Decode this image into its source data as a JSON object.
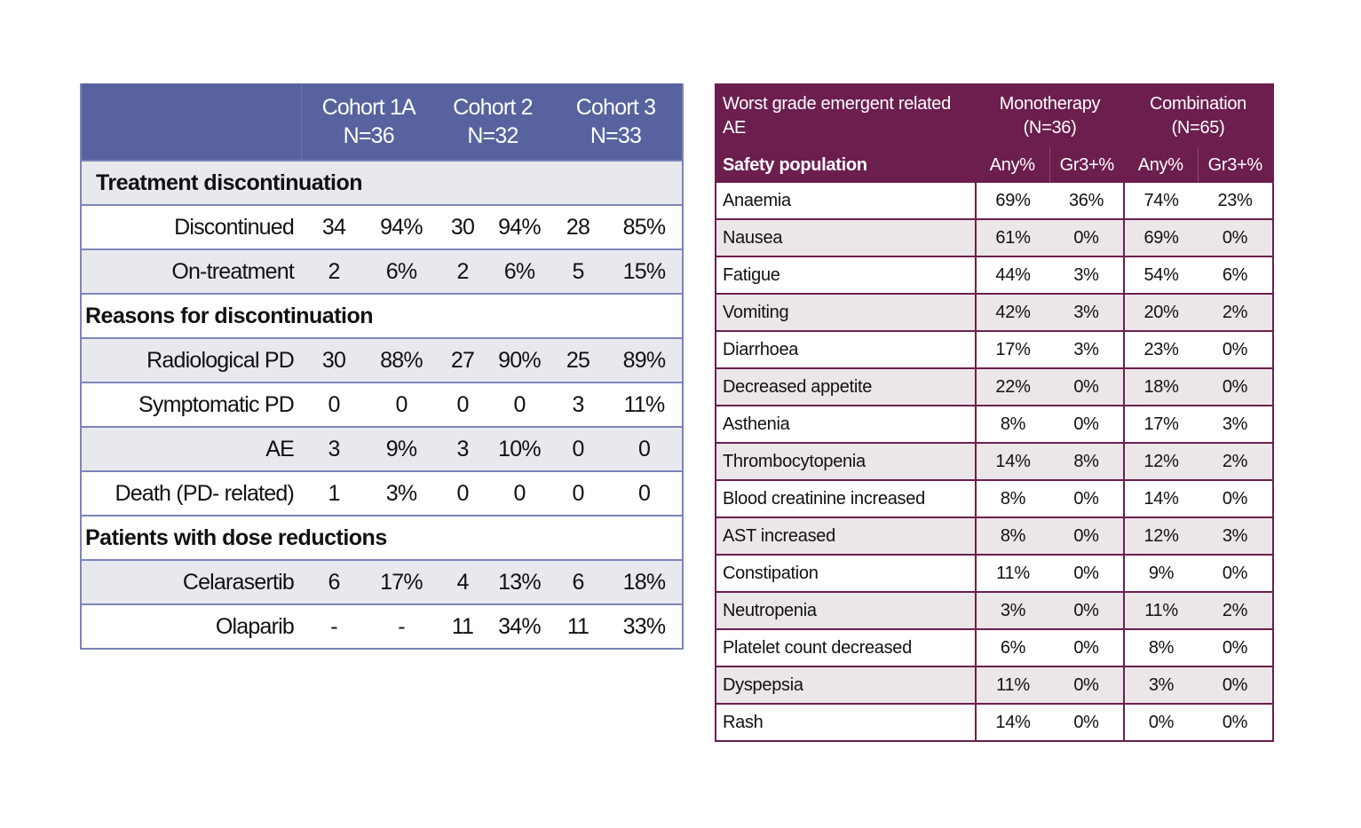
{
  "left_table": {
    "headers": [
      {
        "name": "Cohort 1A",
        "n": "N=36"
      },
      {
        "name": "Cohort 2",
        "n": "N=32"
      },
      {
        "name": "Cohort 3",
        "n": "N=33"
      }
    ],
    "sections": [
      {
        "title": "Treatment discontinuation",
        "rows": [
          {
            "label": "Discontinued",
            "values": [
              "34",
              "94%",
              "30",
              "94%",
              "28",
              "85%"
            ]
          },
          {
            "label": "On-treatment",
            "values": [
              "2",
              "6%",
              "2",
              "6%",
              "5",
              "15%"
            ]
          }
        ]
      },
      {
        "title": "Reasons for discontinuation",
        "rows": [
          {
            "label": "Radiological PD",
            "values": [
              "30",
              "88%",
              "27",
              "90%",
              "25",
              "89%"
            ]
          },
          {
            "label": "Symptomatic PD",
            "values": [
              "0",
              "0",
              "0",
              "0",
              "3",
              "11%"
            ]
          },
          {
            "label": "AE",
            "values": [
              "3",
              "9%",
              "3",
              "10%",
              "0",
              "0"
            ]
          },
          {
            "label": "Death (PD- related)",
            "values": [
              "1",
              "3%",
              "0",
              "0",
              "0",
              "0"
            ]
          }
        ]
      },
      {
        "title": "Patients with dose reductions",
        "rows": [
          {
            "label": "Celarasertib",
            "values": [
              "6",
              "17%",
              "4",
              "13%",
              "6",
              "18%"
            ]
          },
          {
            "label": "Olaparib",
            "values": [
              "-",
              "-",
              "11",
              "34%",
              "11",
              "33%"
            ]
          }
        ]
      }
    ]
  },
  "right_table": {
    "title": "Worst grade emergent related AE",
    "groups": [
      {
        "name": "Monotherapy",
        "n": "(N=36)"
      },
      {
        "name": "Combination",
        "n": "(N=65)"
      }
    ],
    "subheader": "Safety population",
    "subcols": [
      "Any%",
      "Gr3+%",
      "Any%",
      "Gr3+%"
    ],
    "rows": [
      {
        "label": "Anaemia",
        "values": [
          "69%",
          "36%",
          "74%",
          "23%"
        ]
      },
      {
        "label": "Nausea",
        "values": [
          "61%",
          "0%",
          "69%",
          "0%"
        ]
      },
      {
        "label": "Fatigue",
        "values": [
          "44%",
          "3%",
          "54%",
          "6%"
        ]
      },
      {
        "label": "Vomiting",
        "values": [
          "42%",
          "3%",
          "20%",
          "2%"
        ]
      },
      {
        "label": "Diarrhoea",
        "values": [
          "17%",
          "3%",
          "23%",
          "0%"
        ]
      },
      {
        "label": "Decreased appetite",
        "values": [
          "22%",
          "0%",
          "18%",
          "0%"
        ]
      },
      {
        "label": "Asthenia",
        "values": [
          "8%",
          "0%",
          "17%",
          "3%"
        ]
      },
      {
        "label": "Thrombocytopenia",
        "values": [
          "14%",
          "8%",
          "12%",
          "2%"
        ]
      },
      {
        "label": "Blood creatinine increased",
        "values": [
          "8%",
          "0%",
          "14%",
          "0%"
        ]
      },
      {
        "label": "AST increased",
        "values": [
          "8%",
          "0%",
          "12%",
          "3%"
        ]
      },
      {
        "label": "Constipation",
        "values": [
          "11%",
          "0%",
          "9%",
          "0%"
        ]
      },
      {
        "label": "Neutropenia",
        "values": [
          "3%",
          "0%",
          "11%",
          "2%"
        ]
      },
      {
        "label": "Platelet count decreased",
        "values": [
          "6%",
          "0%",
          "8%",
          "0%"
        ]
      },
      {
        "label": "Dyspepsia",
        "values": [
          "11%",
          "0%",
          "3%",
          "0%"
        ]
      },
      {
        "label": "Rash",
        "values": [
          "14%",
          "0%",
          "0%",
          "0%"
        ]
      }
    ]
  }
}
